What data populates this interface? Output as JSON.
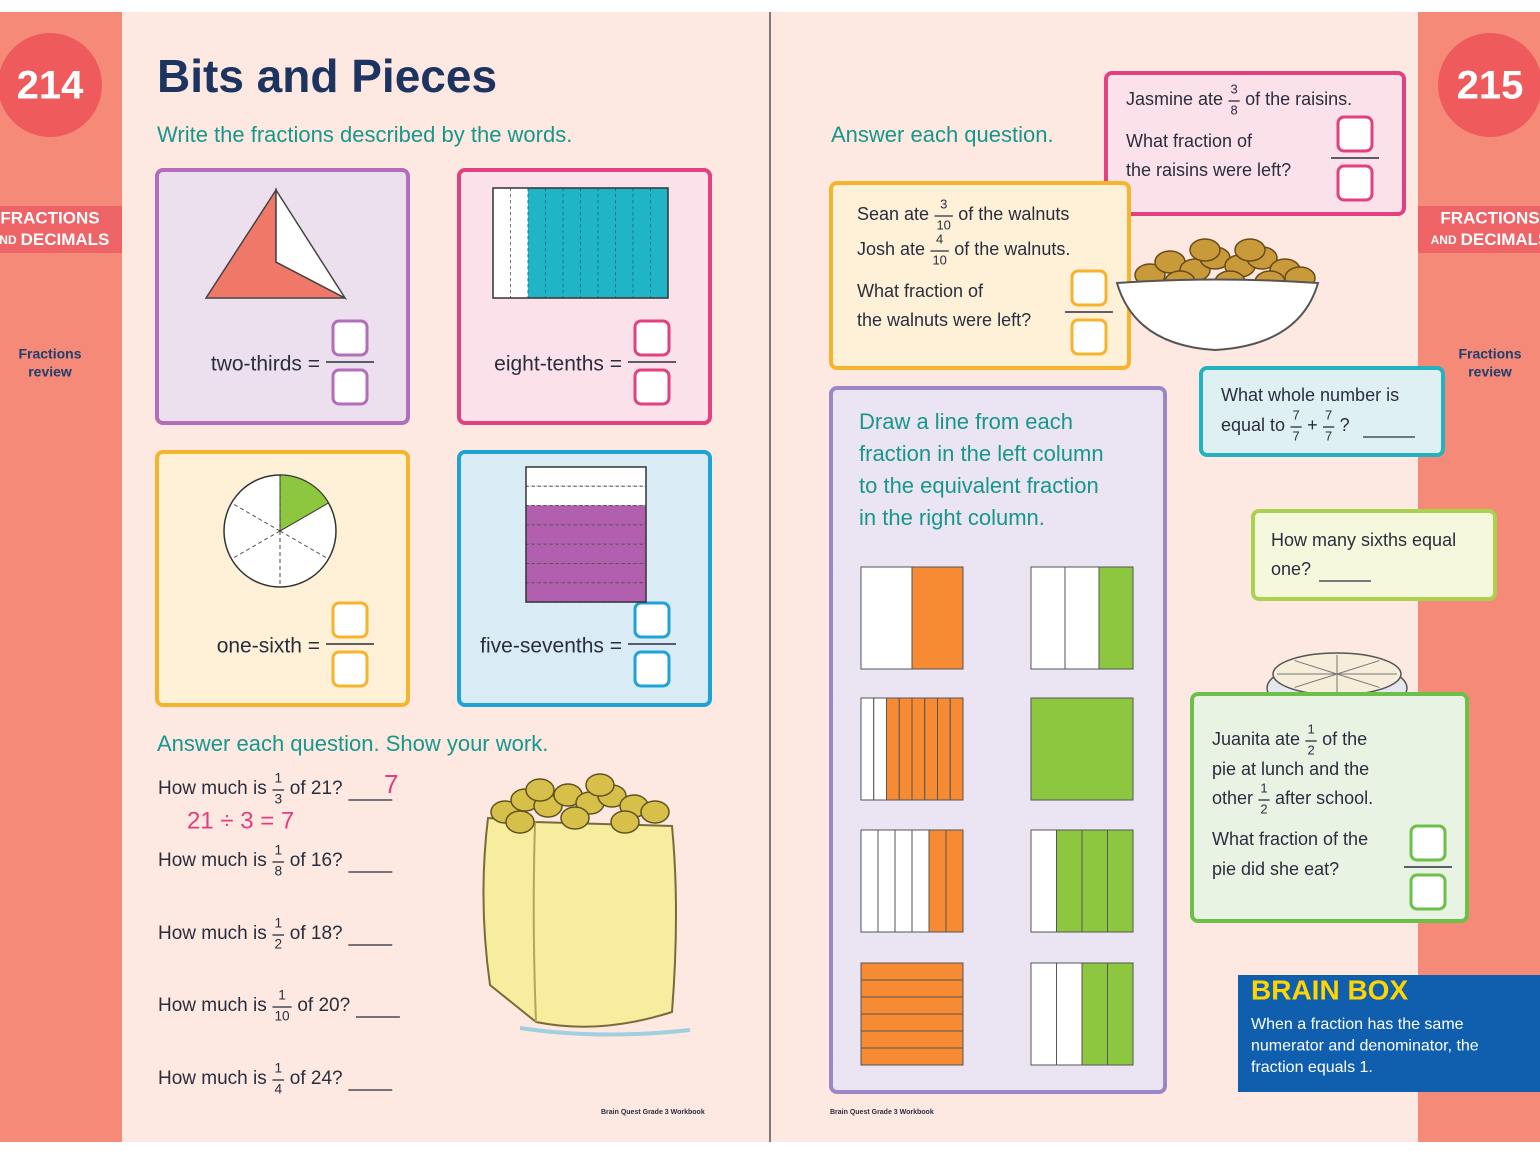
{
  "left_page": {
    "page_number": "214",
    "tab": {
      "line1": "FRACTIONS",
      "line2_small": "AND",
      "line2": "DECIMALS",
      "section_lines": [
        "Fractions",
        "review"
      ]
    },
    "title": "Bits and Pieces",
    "instruction": "Write the fractions described by the words.",
    "fraction_cards": [
      {
        "label": "two-thirds ="
      },
      {
        "label": "eight-tenths ="
      },
      {
        "label": "one-sixth ="
      },
      {
        "label": "five-sevenths ="
      }
    ],
    "show_work": {
      "heading": "Answer each question. Show your work.",
      "questions": [
        {
          "before": "How much is",
          "numerator": "1",
          "denominator": "3",
          "after": "of 21?",
          "answer": "7",
          "work": "21 ÷ 3 = 7"
        },
        {
          "before": "How much is",
          "numerator": "1",
          "denominator": "8",
          "after": "of 16?"
        },
        {
          "before": "How much is",
          "numerator": "1",
          "denominator": "2",
          "after": "of 18?"
        },
        {
          "before": "How much is",
          "numerator": "1",
          "denominator": "10",
          "after": "of 20?"
        },
        {
          "before": "How much is",
          "numerator": "1",
          "denominator": "4",
          "after": "of 24?"
        }
      ]
    },
    "footer": "Brain Quest Grade 3 Workbook"
  },
  "right_page": {
    "page_number": "215",
    "tab": {
      "line1": "FRACTIONS",
      "line2_small": "AND",
      "line2": "DECIMALS",
      "section_lines": [
        "Fractions",
        "review"
      ]
    },
    "instruction": "Answer each question.",
    "raisins": {
      "intro": {
        "before": "Jasmine ate",
        "numerator": "3",
        "denominator": "8",
        "after": "of the raisins."
      },
      "question_lines": [
        "What fraction of",
        "the raisins were left?"
      ]
    },
    "walnuts": {
      "lines": [
        {
          "before": "Sean ate",
          "numerator": "3",
          "denominator": "10",
          "after": "of the walnuts"
        },
        {
          "before": "Josh ate",
          "numerator": "4",
          "denominator": "10",
          "after": "of the walnuts."
        }
      ],
      "question_lines": [
        "What fraction of",
        "the walnuts were left?"
      ]
    },
    "matching": {
      "instruction_lines": [
        "Draw a line from each",
        "fraction in the left column",
        "to the equivalent fraction",
        "in the right column."
      ]
    },
    "whole_number": {
      "line1": "What whole number is",
      "expression": {
        "before": "equal to",
        "fraction1": {
          "numerator": "7",
          "denominator": "7"
        },
        "operator": "+",
        "fraction2": {
          "numerator": "7",
          "denominator": "7"
        },
        "after": "?"
      }
    },
    "sixths": {
      "lines": [
        "How many sixths equal",
        "one?"
      ]
    },
    "pie": {
      "line1": {
        "before": "Juanita ate",
        "numerator": "1",
        "denominator": "2",
        "after": "of the"
      },
      "line2": "pie at lunch and the",
      "line3": {
        "before": "other",
        "numerator": "1",
        "denominator": "2",
        "after": "after school."
      },
      "question_lines": [
        "What fraction of the",
        "pie did she eat?"
      ]
    },
    "brain_box": {
      "title": "BRAIN BOX",
      "lines": [
        "When a fraction has the same",
        "numerator and denominator, the",
        "fraction equals 1."
      ]
    },
    "footer": "Brain Quest Grade 3 Workbook"
  }
}
